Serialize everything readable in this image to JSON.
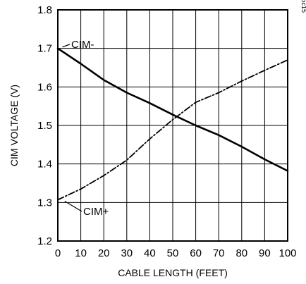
{
  "chart_data": {
    "type": "line",
    "title": "",
    "xlabel": "CABLE LENGTH (FEET)",
    "ylabel": "CIM VOLTAGE (V)",
    "xlim": [
      0,
      100
    ],
    "ylim": [
      1.2,
      1.8
    ],
    "xticks": [
      0,
      10,
      20,
      30,
      40,
      50,
      60,
      70,
      80,
      90,
      100
    ],
    "yticks": [
      1.2,
      1.3,
      1.4,
      1.5,
      1.6,
      1.7,
      1.8
    ],
    "grid": true,
    "figure_id": "MAX3800 toc15",
    "series": [
      {
        "name": "CIM-",
        "style": "solid",
        "x": [
          0,
          10,
          20,
          30,
          40,
          50,
          60,
          70,
          80,
          90,
          100
        ],
        "y": [
          1.7,
          1.66,
          1.618,
          1.585,
          1.558,
          1.528,
          1.5,
          1.475,
          1.445,
          1.412,
          1.382
        ]
      },
      {
        "name": "CIM+",
        "style": "dashdot",
        "x": [
          0,
          10,
          20,
          30,
          40,
          50,
          60,
          70,
          80,
          90,
          100
        ],
        "y": [
          1.307,
          1.335,
          1.37,
          1.41,
          1.465,
          1.515,
          1.56,
          1.585,
          1.615,
          1.643,
          1.67
        ]
      }
    ]
  }
}
